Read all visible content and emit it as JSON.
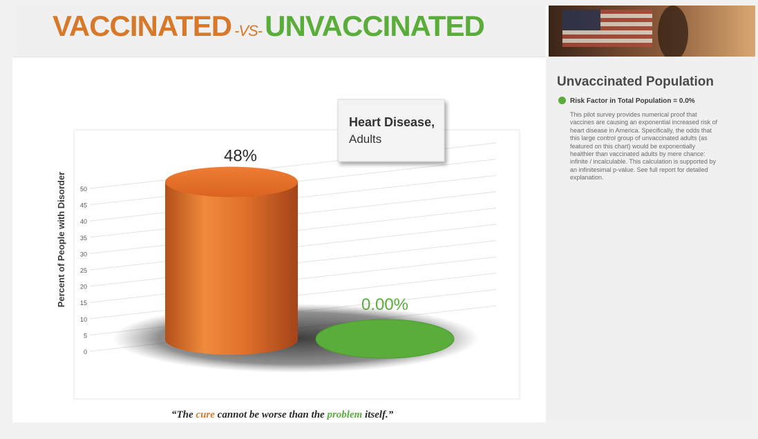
{
  "header": {
    "title_part1": "VACCINATED",
    "title_vs": "-VS-",
    "title_part2": "UNVACCINATED",
    "color_vaccinated": "#d6792a",
    "color_unvaccinated": "#5aad3a"
  },
  "sidebar": {
    "heading": "Unvaccinated Population",
    "risk_factor": "Risk Factor in Total Population = 0.0%",
    "description": "This pilot survey provides numerical proof that vaccines are causing an exponential increased risk of heart disease in America. Specifically, the odds that this large control group of unvaccinated adults (as featured on this chart) would be exponentially healthier than vaccinated adults by mere chance: infinite / incalculable. This calculation is supported by an infinitesimal p-value. See full report for detailed explanation."
  },
  "chart_data": {
    "type": "bar",
    "title_line1": "Heart Disease,",
    "title_line2": "Adults",
    "ylabel": "Percent of People with Disorder",
    "xlabel": "",
    "ylim": [
      0,
      50
    ],
    "yticks": [
      "0",
      "5",
      "10",
      "15",
      "20",
      "25",
      "30",
      "35",
      "40",
      "45",
      "50"
    ],
    "grid": true,
    "categories": [
      "Vaccinated",
      "Unvaccinated"
    ],
    "values": [
      48,
      0.0
    ],
    "data_labels": [
      "48%",
      "0.00%"
    ],
    "colors": [
      "#e2702a",
      "#5aad3a"
    ],
    "label_colors": [
      "#2a2a2a",
      "#5aad3a"
    ]
  },
  "footer": {
    "quote_open": "“The ",
    "quote_cure": "cure",
    "quote_mid": " cannot be worse than the ",
    "quote_problem": "problem",
    "quote_close": " itself.”"
  }
}
